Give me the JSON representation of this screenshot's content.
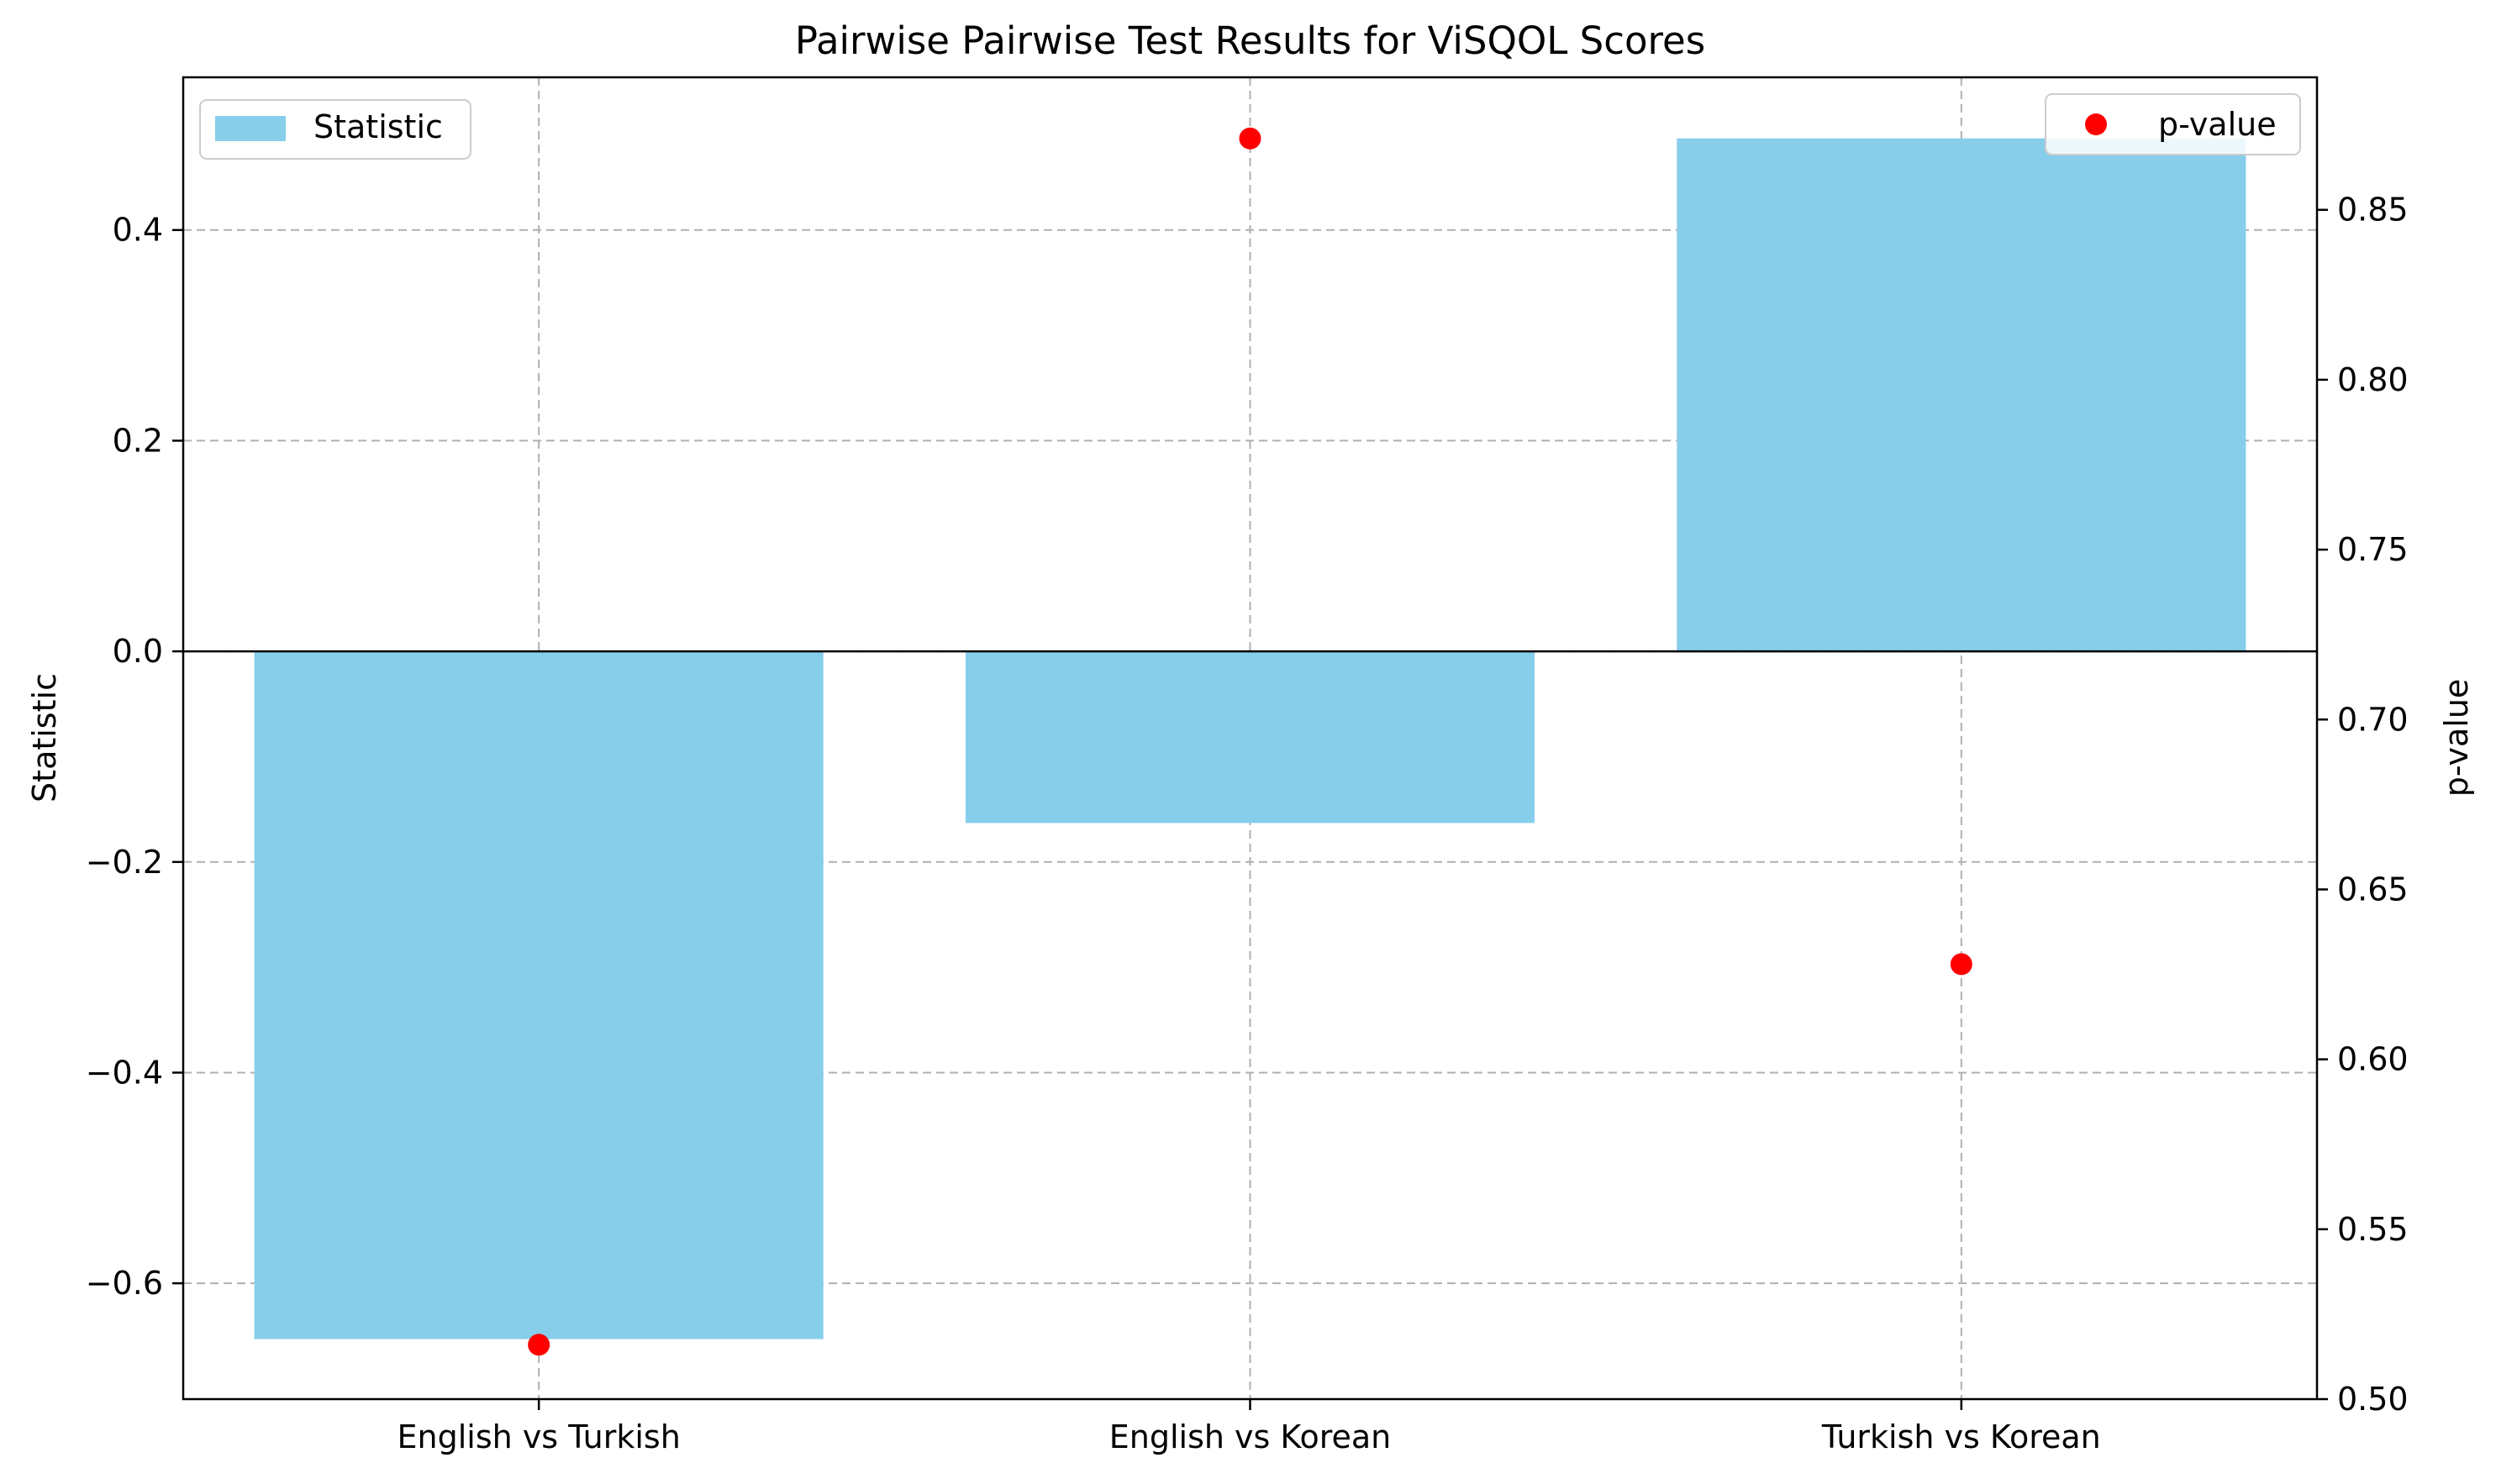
{
  "chart_data": {
    "type": "bar",
    "title": "Pairwise Pairwise Test Results for ViSQOL Scores",
    "xlabel": "",
    "categories": [
      "English vs Turkish",
      "English vs Korean",
      "Turkish vs Korean"
    ],
    "grid": true,
    "left_axis": {
      "label": "Statistic",
      "ylim": [
        -0.71,
        0.545
      ],
      "ticks": [
        0.4,
        0.2,
        0.0,
        -0.2,
        -0.4,
        -0.6
      ],
      "tick_labels": [
        "0.4",
        "0.2",
        "0.0",
        "−0.2",
        "−0.4",
        "−0.6"
      ]
    },
    "right_axis": {
      "label": "p-value",
      "ylim": [
        0.5,
        0.889
      ],
      "ticks": [
        0.85,
        0.8,
        0.75,
        0.7,
        0.65,
        0.6,
        0.55,
        0.5
      ],
      "tick_labels": [
        "0.85",
        "0.80",
        "0.75",
        "0.70",
        "0.65",
        "0.60",
        "0.55",
        "0.50"
      ]
    },
    "series": [
      {
        "name": "Statistic",
        "kind": "bar",
        "axis": "left",
        "color": "#87CEEB",
        "values": [
          -0.653,
          -0.163,
          0.487
        ]
      },
      {
        "name": "p-value",
        "kind": "scatter",
        "axis": "right",
        "color": "#ff0000",
        "values": [
          0.516,
          0.871,
          0.628
        ]
      }
    ],
    "legends": [
      {
        "position": "upper-left",
        "label": "Statistic",
        "marker": "bar"
      },
      {
        "position": "upper-right",
        "label": "p-value",
        "marker": "dot"
      }
    ]
  }
}
